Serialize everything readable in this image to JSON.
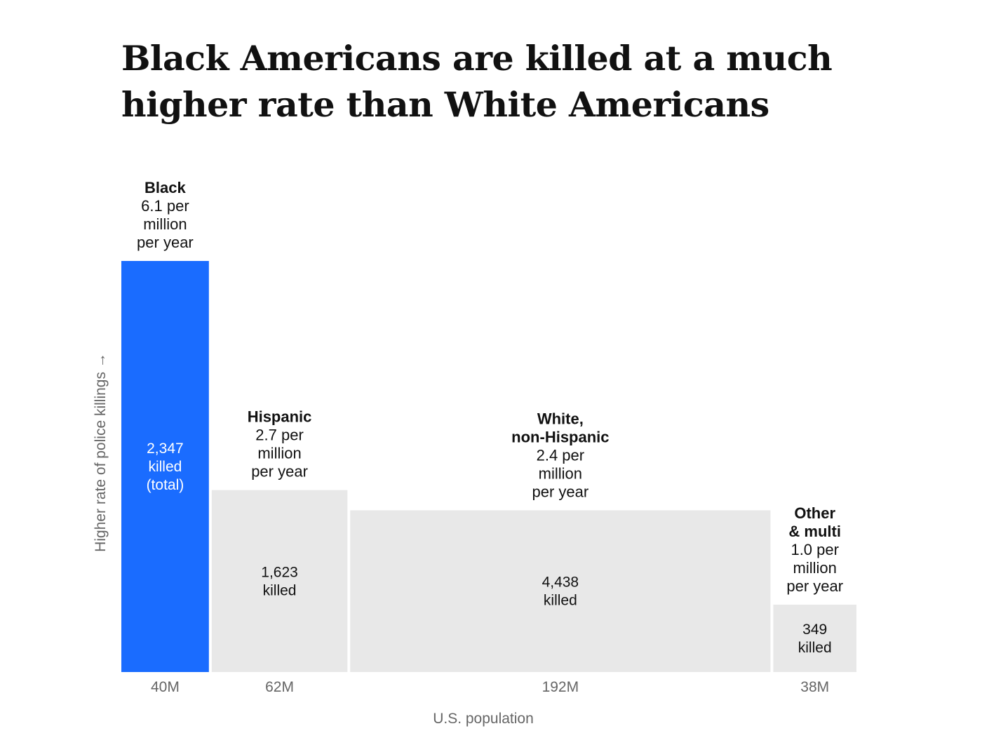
{
  "colors": {
    "highlight": "#1a6cff",
    "bar": "#e8e8e8",
    "text": "#111111",
    "axis_text": "#666666",
    "on_highlight_text": "#ffffff"
  },
  "chart_data": {
    "type": "bar",
    "title": "Black Americans are killed at a much higher rate than White Americans",
    "xlabel": "U.S. population",
    "ylabel": "Higher rate of police killings →",
    "ylim": [
      0,
      6.1
    ],
    "bars": [
      {
        "group": "Black",
        "group_lines": [
          "Black"
        ],
        "rate": 6.1,
        "rate_lines": [
          "6.1 per",
          "million",
          "per year"
        ],
        "population_millions": 40,
        "population_label": "40M",
        "killed": 2347,
        "killed_lines": [
          "2,347",
          "killed",
          "(total)"
        ],
        "highlight": true
      },
      {
        "group": "Hispanic",
        "group_lines": [
          "Hispanic"
        ],
        "rate": 2.7,
        "rate_lines": [
          "2.7 per",
          "million",
          "per year"
        ],
        "population_millions": 62,
        "population_label": "62M",
        "killed": 1623,
        "killed_lines": [
          "1,623",
          "killed"
        ],
        "highlight": false
      },
      {
        "group": "White, non-Hispanic",
        "group_lines": [
          "White,",
          "non-Hispanic"
        ],
        "rate": 2.4,
        "rate_lines": [
          "2.4 per",
          "million",
          "per year"
        ],
        "population_millions": 192,
        "population_label": "192M",
        "killed": 4438,
        "killed_lines": [
          "4,438",
          "killed"
        ],
        "highlight": false
      },
      {
        "group": "Other & multi",
        "group_lines": [
          "Other",
          "& multi"
        ],
        "rate": 1.0,
        "rate_lines": [
          "1.0 per",
          "million",
          "per year"
        ],
        "population_millions": 38,
        "population_label": "38M",
        "killed": 349,
        "killed_lines": [
          "349",
          "killed"
        ],
        "highlight": false
      }
    ]
  }
}
